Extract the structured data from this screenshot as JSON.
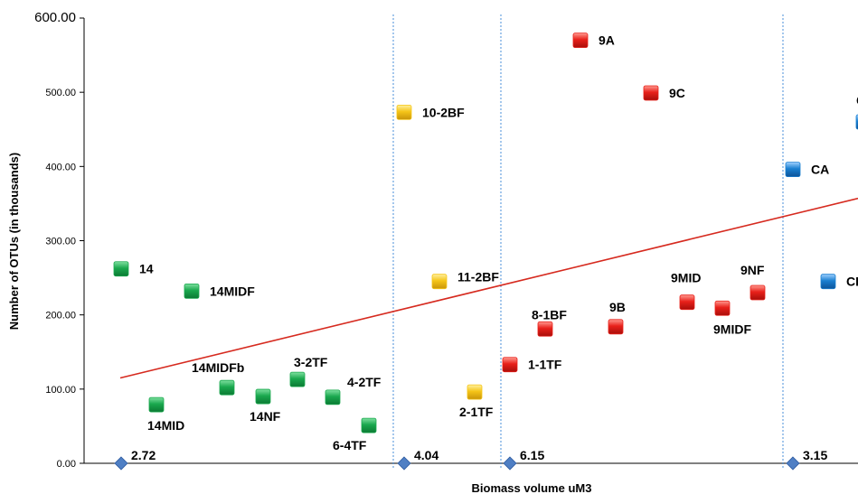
{
  "chart_data": {
    "type": "scatter",
    "xlabel": "Biomass volume uM3",
    "ylabel": "Number of OTUs (in thousands)",
    "ylim": [
      0,
      600
    ],
    "y_ticks": [
      "0.00",
      "100.00",
      "200.00",
      "300.00",
      "400.00",
      "500.00",
      "600.00"
    ],
    "grid": false,
    "colors": {
      "green": "#1aa84e",
      "yellow": "#f5c518",
      "red": "#e8201a",
      "blue": "#1a7fd0",
      "trend": "#d62a1f",
      "divider": "#4a8fd8",
      "diamond": "#4f7fc4"
    },
    "points": [
      {
        "label": "14",
        "y": 262,
        "color": "green"
      },
      {
        "label": "14MIDF",
        "y": 232,
        "color": "green"
      },
      {
        "label": "14MID",
        "y": 79,
        "color": "green"
      },
      {
        "label": "14MIDFb",
        "y": 102,
        "color": "green"
      },
      {
        "label": "14NF",
        "y": 90,
        "color": "green"
      },
      {
        "label": "3-2TF",
        "y": 113,
        "color": "green"
      },
      {
        "label": "4-2TF",
        "y": 89,
        "color": "green"
      },
      {
        "label": "6-4TF",
        "y": 51,
        "color": "green"
      },
      {
        "label": "10-2BF",
        "y": 473,
        "color": "yellow"
      },
      {
        "label": "11-2BF",
        "y": 245,
        "color": "yellow"
      },
      {
        "label": "2-1TF",
        "y": 96,
        "color": "yellow"
      },
      {
        "label": "1-1TF",
        "y": 133,
        "color": "red"
      },
      {
        "label": "8-1BF",
        "y": 181,
        "color": "red"
      },
      {
        "label": "9A",
        "y": 570,
        "color": "red"
      },
      {
        "label": "9C",
        "y": 499,
        "color": "red"
      },
      {
        "label": "9B",
        "y": 184,
        "color": "red"
      },
      {
        "label": "9MID",
        "y": 217,
        "color": "red"
      },
      {
        "label": "9MIDF",
        "y": 209,
        "color": "red"
      },
      {
        "label": "9NF",
        "y": 230,
        "color": "red"
      },
      {
        "label": "CA",
        "y": 396,
        "color": "blue"
      },
      {
        "label": "CB",
        "y": 245,
        "color": "blue"
      },
      {
        "label": "C",
        "y": 460,
        "color": "blue"
      }
    ],
    "group_markers": [
      {
        "label": "2.72",
        "y": 0
      },
      {
        "label": "4.04",
        "y": 0
      },
      {
        "label": "6.15",
        "y": 0
      },
      {
        "label": "3.15",
        "y": 0
      }
    ],
    "trendline": {
      "y_start": 115,
      "y_end": 357
    }
  }
}
